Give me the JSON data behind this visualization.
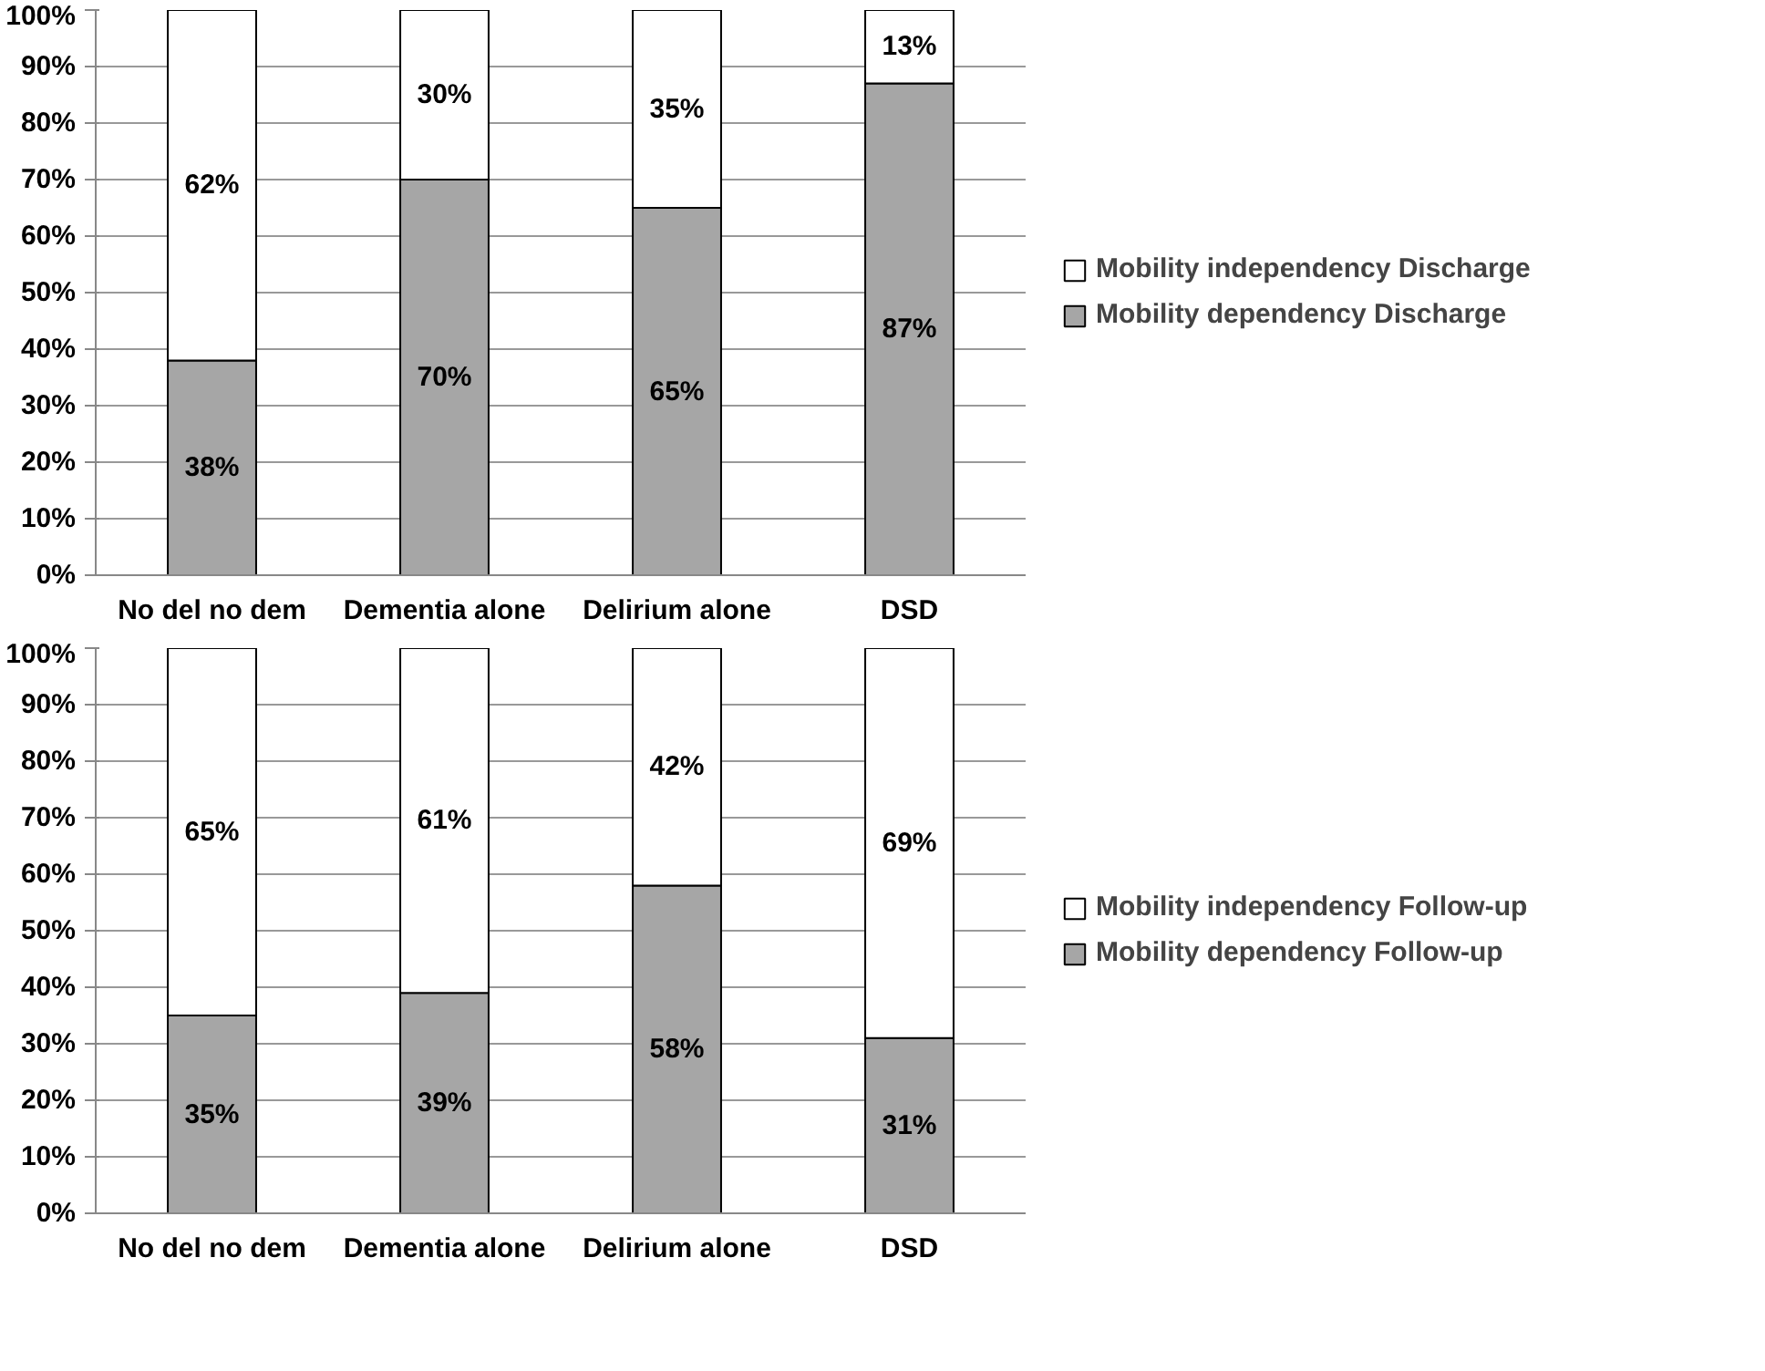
{
  "chart_data": [
    {
      "type": "bar",
      "stacked": true,
      "categories": [
        "No del no dem",
        "Dementia alone",
        "Delirium alone",
        "DSD"
      ],
      "series": [
        {
          "name": "Mobility dependency Discharge",
          "color": "#a6a6a6",
          "values": [
            38,
            70,
            65,
            87
          ],
          "value_labels": [
            "38%",
            "70%",
            "65%",
            "87%"
          ]
        },
        {
          "name": "Mobility independency Discharge",
          "color": "#ffffff",
          "values": [
            62,
            30,
            35,
            13
          ],
          "value_labels": [
            "62%",
            "30%",
            "35%",
            "13%"
          ]
        }
      ],
      "ylim": [
        0,
        100
      ],
      "yticks": [
        {
          "value": 0,
          "label": "0%"
        },
        {
          "value": 10,
          "label": "10%"
        },
        {
          "value": 20,
          "label": "20%"
        },
        {
          "value": 30,
          "label": "30%"
        },
        {
          "value": 40,
          "label": "40%"
        },
        {
          "value": 50,
          "label": "50%"
        },
        {
          "value": 60,
          "label": "60%"
        },
        {
          "value": 70,
          "label": "70%"
        },
        {
          "value": 80,
          "label": "80%"
        },
        {
          "value": 90,
          "label": "90%"
        },
        {
          "value": 100,
          "label": "100%"
        }
      ],
      "grid": "y",
      "legend": "right"
    },
    {
      "type": "bar",
      "stacked": true,
      "categories": [
        "No del no dem",
        "Dementia alone",
        "Delirium alone",
        "DSD"
      ],
      "series": [
        {
          "name": "Mobility dependency Follow-up",
          "color": "#a6a6a6",
          "values": [
            35,
            39,
            58,
            31
          ],
          "value_labels": [
            "35%",
            "39%",
            "58%",
            "31%"
          ]
        },
        {
          "name": "Mobility independency Follow-up",
          "color": "#ffffff",
          "values": [
            65,
            61,
            42,
            69
          ],
          "value_labels": [
            "65%",
            "61%",
            "42%",
            "69%"
          ]
        }
      ],
      "ylim": [
        0,
        100
      ],
      "yticks": [
        {
          "value": 0,
          "label": "0%"
        },
        {
          "value": 10,
          "label": "10%"
        },
        {
          "value": 20,
          "label": "20%"
        },
        {
          "value": 30,
          "label": "30%"
        },
        {
          "value": 40,
          "label": "40%"
        },
        {
          "value": 50,
          "label": "50%"
        },
        {
          "value": 60,
          "label": "60%"
        },
        {
          "value": 70,
          "label": "70%"
        },
        {
          "value": 80,
          "label": "80%"
        },
        {
          "value": 90,
          "label": "90%"
        },
        {
          "value": 100,
          "label": "100%"
        }
      ],
      "grid": "y",
      "legend": "right"
    }
  ]
}
